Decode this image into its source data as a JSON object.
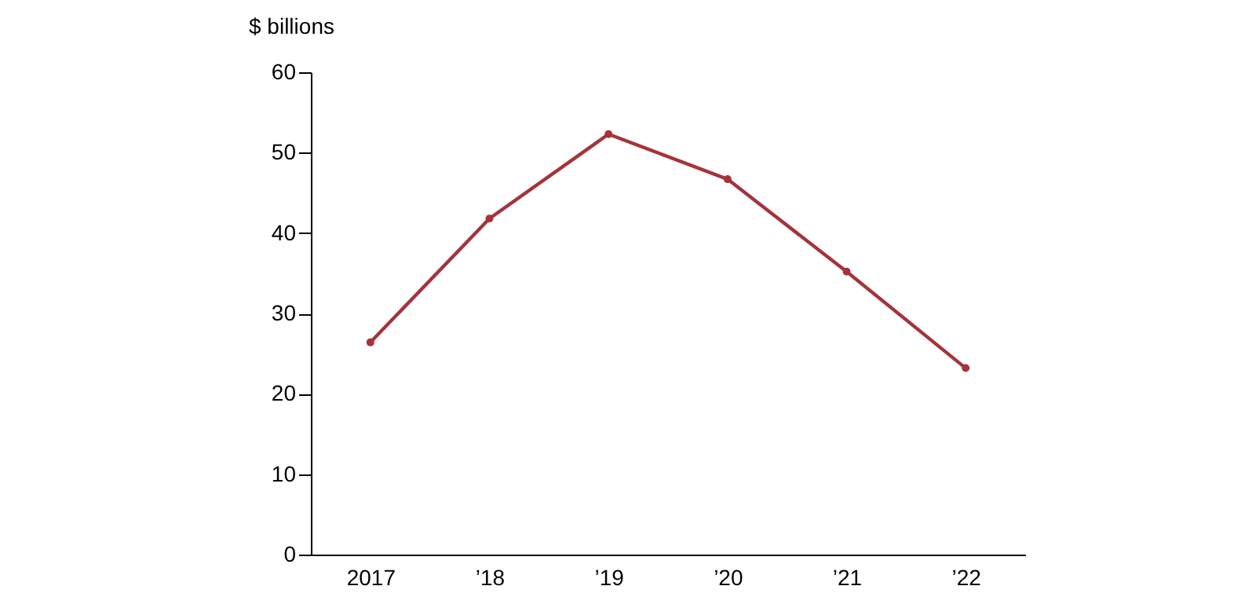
{
  "chart_data": {
    "type": "line",
    "ylabel": "$ billions",
    "categories": [
      "2017",
      "’18",
      "’19",
      "’20",
      "’21",
      "’22"
    ],
    "series": [
      {
        "color": "#a4343a",
        "values": [
          26.4,
          41.8,
          52.3,
          46.7,
          35.2,
          23.2
        ]
      }
    ],
    "ylim": [
      0,
      60
    ],
    "yticks": [
      0,
      10,
      20,
      30,
      40,
      50,
      60
    ],
    "grid": false,
    "legend": false,
    "marker": "circle",
    "line_style": "solid"
  }
}
